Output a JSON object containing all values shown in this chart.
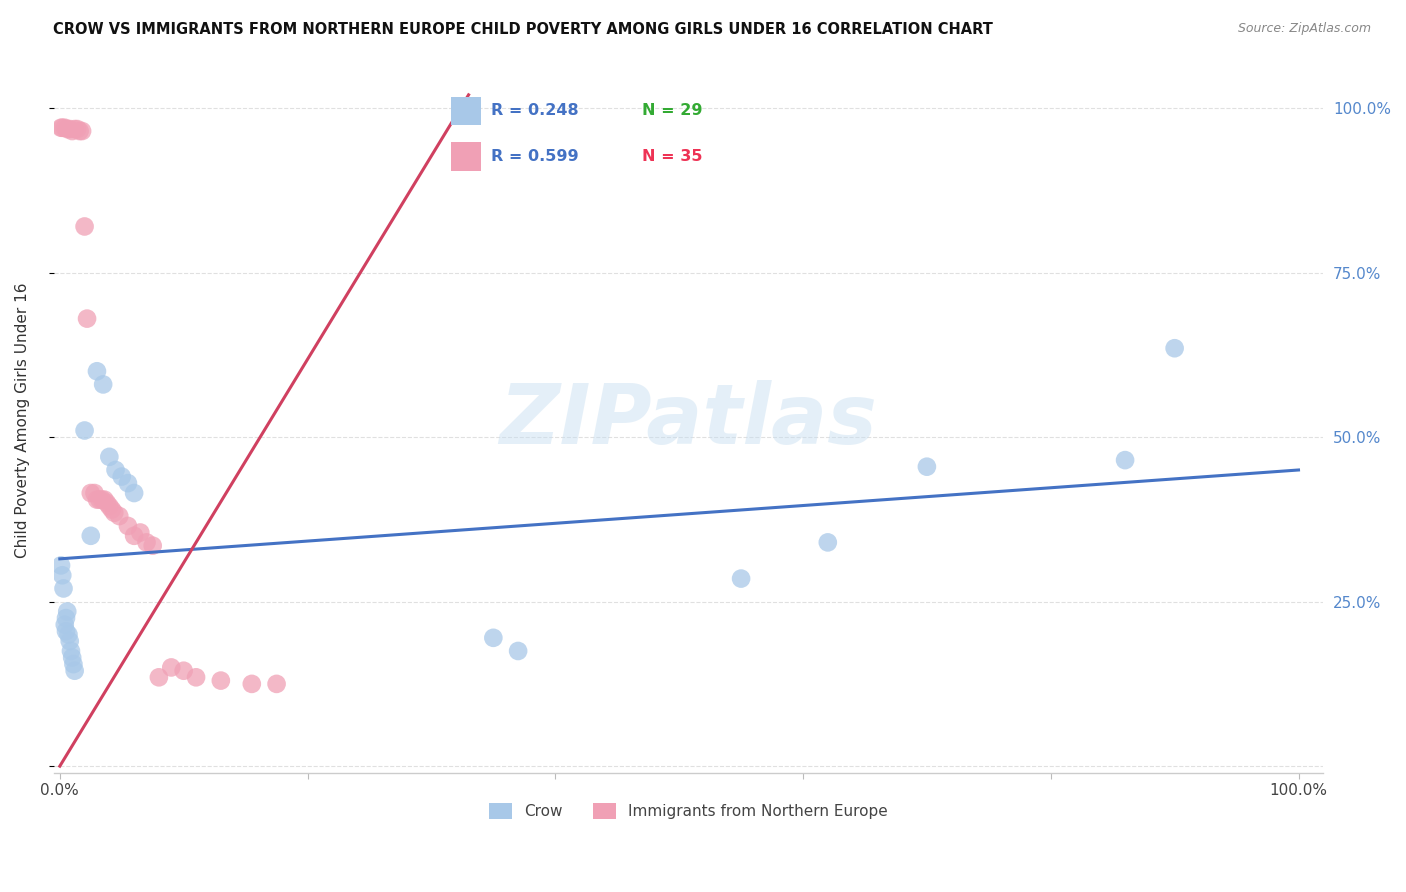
{
  "title": "CROW VS IMMIGRANTS FROM NORTHERN EUROPE CHILD POVERTY AMONG GIRLS UNDER 16 CORRELATION CHART",
  "source": "Source: ZipAtlas.com",
  "ylabel": "Child Poverty Among Girls Under 16",
  "yticks": [
    0.0,
    0.25,
    0.5,
    0.75,
    1.0
  ],
  "ytick_labels_right": [
    "",
    "25.0%",
    "50.0%",
    "75.0%",
    "100.0%"
  ],
  "xticks": [
    0.0,
    0.2,
    0.4,
    0.6,
    0.8,
    1.0
  ],
  "xtick_labels": [
    "0.0%",
    "",
    "",
    "",
    "",
    "100.0%"
  ],
  "legend_crow_r": "R = 0.248",
  "legend_crow_n": "N = 29",
  "legend_imm_r": "R = 0.599",
  "legend_imm_n": "N = 35",
  "crow_color": "#a8c8e8",
  "imm_color": "#f0a0b5",
  "trendline_crow_color": "#4472c4",
  "trendline_imm_color": "#d04060",
  "watermark": "ZIPatlas",
  "crow_scatter_x": [
    0.001,
    0.002,
    0.003,
    0.004,
    0.005,
    0.005,
    0.006,
    0.007,
    0.008,
    0.009,
    0.01,
    0.011,
    0.012,
    0.02,
    0.025,
    0.03,
    0.035,
    0.04,
    0.045,
    0.05,
    0.055,
    0.06,
    0.35,
    0.37,
    0.55,
    0.62,
    0.7,
    0.86,
    0.9
  ],
  "crow_scatter_y": [
    0.305,
    0.29,
    0.27,
    0.215,
    0.205,
    0.225,
    0.235,
    0.2,
    0.19,
    0.175,
    0.165,
    0.155,
    0.145,
    0.51,
    0.35,
    0.6,
    0.58,
    0.47,
    0.45,
    0.44,
    0.43,
    0.415,
    0.195,
    0.175,
    0.285,
    0.34,
    0.455,
    0.465,
    0.635
  ],
  "imm_scatter_x": [
    0.001,
    0.002,
    0.004,
    0.006,
    0.008,
    0.01,
    0.012,
    0.014,
    0.016,
    0.018,
    0.02,
    0.022,
    0.025,
    0.028,
    0.03,
    0.032,
    0.034,
    0.036,
    0.038,
    0.04,
    0.042,
    0.044,
    0.048,
    0.055,
    0.06,
    0.065,
    0.07,
    0.075,
    0.08,
    0.09,
    0.1,
    0.11,
    0.13,
    0.155,
    0.175
  ],
  "imm_scatter_y": [
    0.97,
    0.97,
    0.97,
    0.968,
    0.968,
    0.965,
    0.968,
    0.968,
    0.965,
    0.965,
    0.82,
    0.68,
    0.415,
    0.415,
    0.405,
    0.405,
    0.405,
    0.405,
    0.4,
    0.395,
    0.39,
    0.385,
    0.38,
    0.365,
    0.35,
    0.355,
    0.34,
    0.335,
    0.135,
    0.15,
    0.145,
    0.135,
    0.13,
    0.125,
    0.125
  ],
  "crow_trend_x": [
    0.0,
    1.0
  ],
  "crow_trend_y": [
    0.315,
    0.45
  ],
  "imm_trend_x": [
    0.0,
    0.33
  ],
  "imm_trend_y": [
    0.0,
    1.02
  ],
  "background_color": "#ffffff",
  "grid_color": "#e0e0e0"
}
